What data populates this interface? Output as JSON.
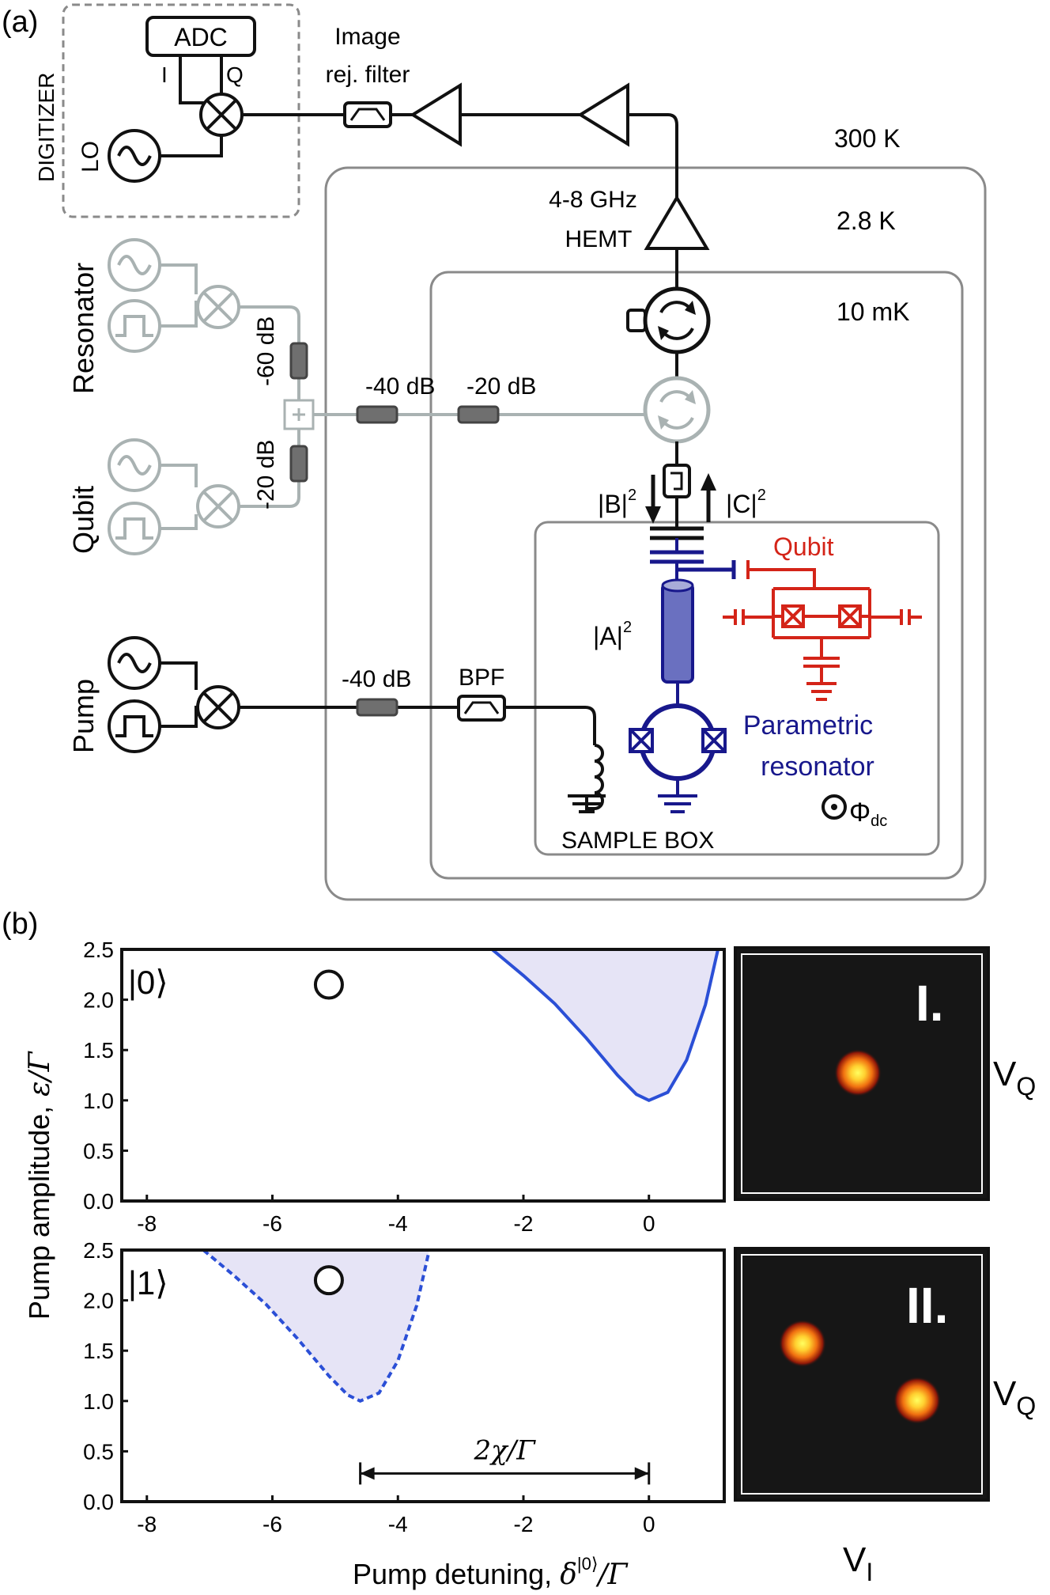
{
  "panel_a": {
    "label": "(a)",
    "digitizer": {
      "title": "DIGITIZER",
      "adc": "ADC",
      "i": "I",
      "q": "Q",
      "lo": "LO"
    },
    "image_filter": {
      "line1": "Image",
      "line2": "rej. filter"
    },
    "temps": {
      "room": "300 K",
      "k28": "2.8 K",
      "mk10": "10 mK"
    },
    "hemt": {
      "line1": "4-8 GHz",
      "line2": "HEMT"
    },
    "sources": {
      "resonator": "Resonator",
      "qubit": "Qubit",
      "pump": "Pump"
    },
    "attenuators": {
      "res_60": "-60 dB",
      "qubit_20": "-20 dB",
      "line_40": "-40 dB",
      "line_20": "-20 dB",
      "pump_40": "-40 dB"
    },
    "bpf": "BPF",
    "b_label": "|B|",
    "c_label": "|C|",
    "a_label": "|A|",
    "squared": "2",
    "qubit_label": "Qubit",
    "param_res": {
      "line1": "Parametric",
      "line2": "resonator"
    },
    "phi": "Φ",
    "phi_sub": "dc",
    "sample_box": "SAMPLE BOX",
    "colors": {
      "black": "#111111",
      "gray": "#a9b2b2",
      "blue": "#18188c",
      "red": "#d42418",
      "box": "#8a8a8a"
    }
  },
  "panel_b": {
    "label": "(b)",
    "ylabel": "Pump amplitude,",
    "ylabel_sym": "ε/Γ",
    "xlabel": "Pump detuning,",
    "xlabel_sym": "δ",
    "xlabel_sup": "|0⟩",
    "xlabel_tail": "/Γ",
    "chi_label": "2χ/Γ",
    "iq": {
      "panel1": "I.",
      "panel2": "II.",
      "vq1": "V",
      "vq2": "V",
      "vq_sub": "Q",
      "vi": "V",
      "vi_sub": "I"
    }
  },
  "chart_data": [
    {
      "type": "area",
      "state_label": "|0⟩",
      "xlim": [
        -8.4,
        1.2
      ],
      "ylim": [
        0,
        2.5
      ],
      "xticks": [
        "-8",
        "-6",
        "-4",
        "-2",
        "0"
      ],
      "yticks": [
        "0.0",
        "0.5",
        "1.0",
        "1.5",
        "2.0",
        "2.5"
      ],
      "boundary_line": "solid",
      "boundary": [
        [
          -2.5,
          2.5
        ],
        [
          -2.0,
          2.24
        ],
        [
          -1.5,
          1.96
        ],
        [
          -1.0,
          1.62
        ],
        [
          -0.5,
          1.25
        ],
        [
          -0.2,
          1.06
        ],
        [
          0.0,
          1.0
        ],
        [
          0.3,
          1.08
        ],
        [
          0.6,
          1.4
        ],
        [
          0.9,
          1.95
        ],
        [
          1.1,
          2.5
        ]
      ],
      "marker": {
        "x": -5.1,
        "y": 2.15
      },
      "colors": {
        "line": "#2b4fd6",
        "fill": "#e6e4f6"
      }
    },
    {
      "type": "area",
      "state_label": "|1⟩",
      "xlim": [
        -8.4,
        1.2
      ],
      "ylim": [
        0,
        2.5
      ],
      "xticks": [
        "-8",
        "-6",
        "-4",
        "-2",
        "0"
      ],
      "yticks": [
        "0.0",
        "0.5",
        "1.0",
        "1.5",
        "2.0",
        "2.5"
      ],
      "boundary_line": "dashed",
      "boundary": [
        [
          -7.1,
          2.5
        ],
        [
          -6.6,
          2.24
        ],
        [
          -6.1,
          1.96
        ],
        [
          -5.6,
          1.62
        ],
        [
          -5.1,
          1.25
        ],
        [
          -4.8,
          1.06
        ],
        [
          -4.6,
          1.0
        ],
        [
          -4.3,
          1.08
        ],
        [
          -4.0,
          1.4
        ],
        [
          -3.7,
          1.95
        ],
        [
          -3.5,
          2.5
        ]
      ],
      "marker": {
        "x": -5.1,
        "y": 2.2
      },
      "chi_arrow": {
        "x_start": -4.6,
        "x_end": 0.0,
        "y": 0.28
      },
      "colors": {
        "line": "#2b4fd6",
        "fill": "#e6e4f6"
      }
    }
  ]
}
